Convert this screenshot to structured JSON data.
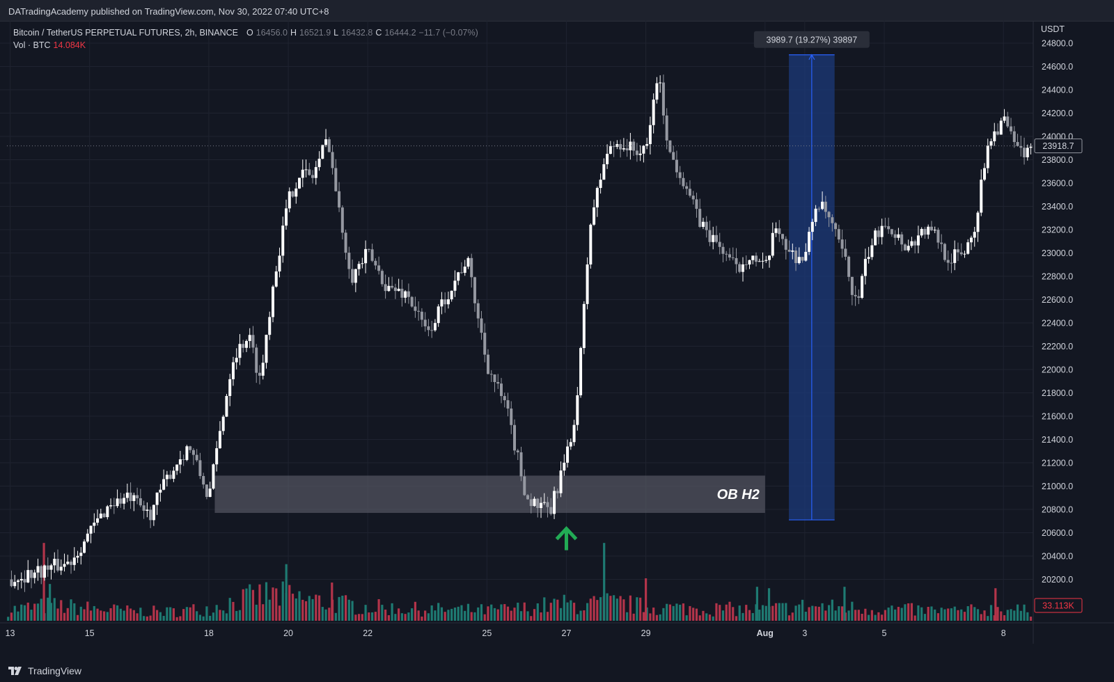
{
  "header": {
    "publisher_line": "DATradingAcademy published on TradingView.com, Nov 30, 2022 07:40 UTC+8"
  },
  "legend": {
    "symbol": "Bitcoin / TetherUS PERPETUAL FUTURES, 2h, BINANCE",
    "open_label": "O",
    "open": "16456.0",
    "high_label": "H",
    "high": "16521.9",
    "low_label": "L",
    "low": "16432.8",
    "close_label": "C",
    "close": "16444.2",
    "change": "−11.7 (−0.07%)",
    "volume_label": "Vol · BTC",
    "volume_value": "14.084K"
  },
  "footer": {
    "brand": "TradingView"
  },
  "colors": {
    "background": "#131722",
    "candle_up": "#ffffff",
    "candle_down": "#9598a1",
    "volume_up": "#1e7a72",
    "volume_down": "#b2344a",
    "measure_fill": "#1c3a7a",
    "measure_line": "#2962ff",
    "zone_fill": "#5d606b",
    "arrow": "#22ab55"
  },
  "chart_data": {
    "type": "candlestick",
    "currency_label": "USDT",
    "ylim": [
      20100,
      24900
    ],
    "y_ticks": [
      {
        "value": 24800,
        "label": "24800.0"
      },
      {
        "value": 24600,
        "label": "24600.0"
      },
      {
        "value": 24400,
        "label": "24400.0"
      },
      {
        "value": 24200,
        "label": "24200.0"
      },
      {
        "value": 24000,
        "label": "24000.0"
      },
      {
        "value": 23800,
        "label": "23800.0"
      },
      {
        "value": 23600,
        "label": "23600.0"
      },
      {
        "value": 23400,
        "label": "23400.0"
      },
      {
        "value": 23200,
        "label": "23200.0"
      },
      {
        "value": 23000,
        "label": "23000.0"
      },
      {
        "value": 22800,
        "label": "22800.0"
      },
      {
        "value": 22600,
        "label": "22600.0"
      },
      {
        "value": 22400,
        "label": "22400.0"
      },
      {
        "value": 22200,
        "label": "22200.0"
      },
      {
        "value": 22000,
        "label": "22000.0"
      },
      {
        "value": 21800,
        "label": "21800.0"
      },
      {
        "value": 21600,
        "label": "21600.0"
      },
      {
        "value": 21400,
        "label": "21400.0"
      },
      {
        "value": 21200,
        "label": "21200.0"
      },
      {
        "value": 21000,
        "label": "21000.0"
      },
      {
        "value": 20800,
        "label": "20800.0"
      },
      {
        "value": 20600,
        "label": "20600.0"
      },
      {
        "value": 20400,
        "label": "20400.0"
      },
      {
        "value": 20200,
        "label": "20200.0"
      }
    ],
    "x_ticks": [
      {
        "day": 13,
        "label": "13"
      },
      {
        "day": 15,
        "label": "15"
      },
      {
        "day": 18,
        "label": "18"
      },
      {
        "day": 20,
        "label": "20"
      },
      {
        "day": 22,
        "label": "22"
      },
      {
        "day": 25,
        "label": "25"
      },
      {
        "day": 27,
        "label": "27"
      },
      {
        "day": 29,
        "label": "29"
      },
      {
        "day": 32,
        "label": "Aug"
      },
      {
        "day": 33,
        "label": "3"
      },
      {
        "day": 35,
        "label": "5"
      },
      {
        "day": 38,
        "label": "8"
      }
    ],
    "price_path_days": [
      13.0,
      13.5,
      14.0,
      14.5,
      15.0,
      15.5,
      16.0,
      16.5,
      17.0,
      17.5,
      18.0,
      18.3,
      18.6,
      19.0,
      19.3,
      19.6,
      20.0,
      20.3,
      20.6,
      21.0,
      21.3,
      21.6,
      22.0,
      22.5,
      23.0,
      23.5,
      24.0,
      24.5,
      25.0,
      25.5,
      26.0,
      26.3,
      26.6,
      26.9,
      27.1,
      27.3,
      27.6,
      28.0,
      28.3,
      28.6,
      29.0,
      29.3,
      29.6,
      30.0,
      30.3,
      30.6,
      31.0,
      31.3,
      31.6,
      32.0,
      32.3,
      32.6,
      33.0,
      33.3,
      33.6,
      34.0,
      34.3,
      34.6,
      35.0,
      35.3,
      35.6,
      36.0,
      36.3,
      36.6,
      37.0,
      37.3,
      37.6,
      38.0,
      38.3,
      38.6
    ],
    "price_path_values": [
      20200,
      20250,
      20300,
      20350,
      20600,
      20850,
      20900,
      20750,
      21100,
      21350,
      20900,
      21500,
      22100,
      22300,
      21900,
      22700,
      23450,
      23700,
      23650,
      24000,
      23300,
      22800,
      23000,
      22700,
      22650,
      22300,
      22650,
      22950,
      22050,
      21650,
      20900,
      20820,
      20780,
      21150,
      21350,
      21850,
      23250,
      23850,
      23950,
      23900,
      23850,
      24550,
      23850,
      23600,
      23300,
      23150,
      23000,
      22850,
      23000,
      22850,
      23250,
      23000,
      22950,
      23450,
      23300,
      22950,
      22550,
      23000,
      23300,
      23150,
      23050,
      23200,
      23150,
      22950,
      23000,
      23250,
      23950,
      24150,
      23900,
      23850
    ],
    "volume_ylim": [
      0,
      6000
    ],
    "volume_path_days": [
      13.0,
      14.0,
      15.0,
      16.0,
      17.0,
      18.0,
      18.5,
      19.0,
      19.5,
      20.0,
      20.5,
      21.0,
      21.5,
      22.0,
      23.0,
      24.0,
      25.0,
      26.0,
      26.5,
      27.0,
      27.5,
      28.0,
      28.5,
      29.0,
      30.0,
      31.0,
      32.0,
      33.0,
      34.0,
      35.0,
      36.0,
      37.0,
      38.0,
      38.6
    ],
    "volume_path_values": [
      800,
      1100,
      900,
      700,
      650,
      900,
      1300,
      1600,
      1900,
      1700,
      1500,
      1300,
      1150,
      1000,
      850,
      800,
      750,
      900,
      1100,
      1200,
      1100,
      1300,
      1200,
      1000,
      900,
      850,
      800,
      1050,
      950,
      850,
      750,
      700,
      900,
      700
    ],
    "volume_spikes": [
      {
        "day": 13.85,
        "value": 5500,
        "dir": "down"
      },
      {
        "day": 14.0,
        "value": 2600,
        "dir": "up"
      },
      {
        "day": 19.95,
        "value": 4000,
        "dir": "up"
      },
      {
        "day": 21.1,
        "value": 2700,
        "dir": "down"
      },
      {
        "day": 27.95,
        "value": 5500,
        "dir": "up"
      },
      {
        "day": 29.0,
        "value": 3000,
        "dir": "down"
      },
      {
        "day": 31.8,
        "value": 2400,
        "dir": "up"
      },
      {
        "day": 32.1,
        "value": 2300,
        "dir": "up"
      },
      {
        "day": 34.0,
        "value": 2400,
        "dir": "up"
      },
      {
        "day": 37.8,
        "value": 2300,
        "dir": "down"
      }
    ],
    "last_price": 23918.7,
    "last_price_label": "23918.7",
    "last_volume_label": "33.113K",
    "order_block": {
      "label": "OB H2",
      "from_day": 18.15,
      "to_day": 32.0,
      "price_low": 20770,
      "price_high": 21090
    },
    "measure": {
      "label": "3989.7 (19.27%) 39897",
      "from_day": 32.6,
      "to_day": 33.75,
      "price_low": 20710,
      "price_high": 24700
    },
    "arrow_day": 27.0,
    "arrow_price": 20450
  }
}
